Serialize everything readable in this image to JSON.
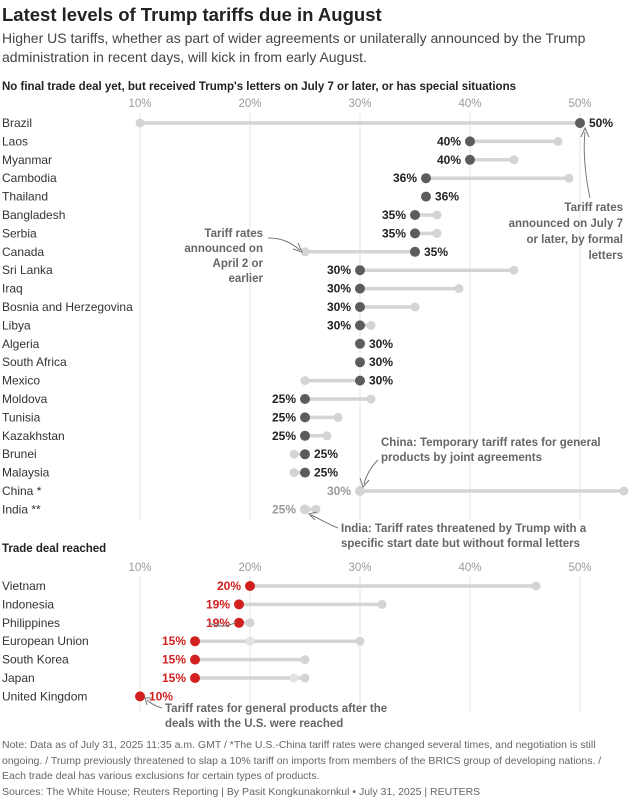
{
  "header": {
    "title": "Latest levels of Trump tariffs due in August",
    "subtitle": "Higher US tariffs, whether as part of wider agreements or unilaterally announced by the Trump administration in recent days, will kick in from early August."
  },
  "colors": {
    "new_rate": "#5c5c5c",
    "old_rate": "#d4d4d4",
    "deal_rate": "#d21f1f",
    "label": "#333333",
    "annotation": "#666666"
  },
  "chart_data": [
    {
      "type": "dumbbell",
      "title": "No final trade deal yet, but received Trump's letters on July 7 or later, or has special situations",
      "xlim": [
        10,
        54
      ],
      "ticks": [
        "10%",
        "20%",
        "30%",
        "40%",
        "50%"
      ],
      "tick_values": [
        10,
        20,
        30,
        40,
        50
      ],
      "rows": [
        {
          "country": "Brazil",
          "old": 10,
          "new": 50,
          "label": "50%"
        },
        {
          "country": "Laos",
          "old": 48,
          "new": 40,
          "label": "40%"
        },
        {
          "country": "Myanmar",
          "old": 44,
          "new": 40,
          "label": "40%"
        },
        {
          "country": "Cambodia",
          "old": 49,
          "new": 36,
          "label": "36%"
        },
        {
          "country": "Thailand",
          "old": 36,
          "new": 36,
          "label": "36%"
        },
        {
          "country": "Bangladesh",
          "old": 37,
          "new": 35,
          "label": "35%"
        },
        {
          "country": "Serbia",
          "old": 37,
          "new": 35,
          "label": "35%"
        },
        {
          "country": "Canada",
          "old": 25,
          "new": 35,
          "label": "35%"
        },
        {
          "country": "Sri Lanka",
          "old": 44,
          "new": 30,
          "label": "30%"
        },
        {
          "country": "Iraq",
          "old": 39,
          "new": 30,
          "label": "30%"
        },
        {
          "country": "Bosnia and Herzegovina",
          "old": 35,
          "new": 30,
          "label": "30%"
        },
        {
          "country": "Libya",
          "old": 31,
          "new": 30,
          "label": "30%"
        },
        {
          "country": "Algeria",
          "old": 30,
          "new": 30,
          "label": "30%"
        },
        {
          "country": "South Africa",
          "old": 30,
          "new": 30,
          "label": "30%"
        },
        {
          "country": "Mexico",
          "old": 25,
          "new": 30,
          "label": "30%"
        },
        {
          "country": "Moldova",
          "old": 31,
          "new": 25,
          "label": "25%"
        },
        {
          "country": "Tunisia",
          "old": 28,
          "new": 25,
          "label": "25%"
        },
        {
          "country": "Kazakhstan",
          "old": 27,
          "new": 25,
          "label": "25%"
        },
        {
          "country": "Brunei",
          "old": 24,
          "new": 25,
          "label": "25%"
        },
        {
          "country": "Malaysia",
          "old": 24,
          "new": 25,
          "label": "25%"
        },
        {
          "country": "China *",
          "old": 54,
          "new": 30,
          "label": "30%",
          "special": true
        },
        {
          "country": "India **",
          "old": 26,
          "new": 25,
          "label": "25%",
          "special": true
        }
      ],
      "annotations": {
        "letters": "Tariff rates announced on July 7 or later, by formal letters",
        "april": "Tariff rates announced on April 2 or earlier",
        "china": "China: Temporary tariff rates for general products by joint agreements",
        "india": "India: Tariff rates threatened by Trump with a specific start date but without formal letters"
      }
    },
    {
      "type": "dumbbell",
      "title": "Trade deal reached",
      "xlim": [
        10,
        54
      ],
      "ticks": [
        "10%",
        "20%",
        "30%",
        "40%",
        "50%"
      ],
      "tick_values": [
        10,
        20,
        30,
        40,
        50
      ],
      "rows": [
        {
          "country": "Vietnam",
          "old": 46,
          "new": 20,
          "label": "20%"
        },
        {
          "country": "Indonesia",
          "old": 32,
          "new": 19,
          "label": "19%"
        },
        {
          "country": "Philippines",
          "old": 20,
          "old_prev": 17,
          "new": 19,
          "label": "19%"
        },
        {
          "country": "European Union",
          "old": 30,
          "old_prev": 20,
          "new": 15,
          "label": "15%"
        },
        {
          "country": "South Korea",
          "old": 25,
          "new": 15,
          "label": "15%"
        },
        {
          "country": "Japan",
          "old": 25,
          "old_prev": 24,
          "new": 15,
          "label": "15%"
        },
        {
          "country": "United Kingdom",
          "old": 10,
          "new": 10,
          "label": "10%"
        }
      ],
      "annotations": {
        "deals": "Tariff rates for general products after the deals with the U.S. were reached"
      }
    }
  ],
  "footer": {
    "note": "Note: Data as of July 31, 2025 11:35 a.m. GMT / *The U.S.-China tariff rates were changed several times, and negotiation is still ongoing. / Trump previously threatened to slap a 10% tariff on imports from members of the BRICS group of developing nations. / Each trade deal has various exclusions for certain types of products.",
    "source": "Sources: The White House; Reuters Reporting | By Pasit Kongkunakornkul • July 31, 2025 | REUTERS"
  }
}
